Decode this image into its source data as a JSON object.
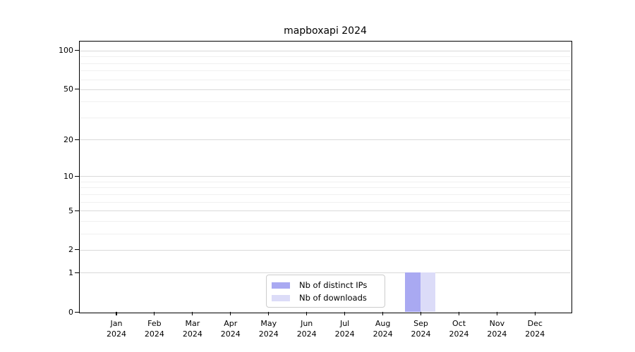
{
  "chart_data": {
    "type": "bar",
    "title": "mapboxapi 2024",
    "categories": [
      {
        "month": "Jan",
        "year": "2024"
      },
      {
        "month": "Feb",
        "year": "2024"
      },
      {
        "month": "Mar",
        "year": "2024"
      },
      {
        "month": "Apr",
        "year": "2024"
      },
      {
        "month": "May",
        "year": "2024"
      },
      {
        "month": "Jun",
        "year": "2024"
      },
      {
        "month": "Jul",
        "year": "2024"
      },
      {
        "month": "Aug",
        "year": "2024"
      },
      {
        "month": "Sep",
        "year": "2024"
      },
      {
        "month": "Oct",
        "year": "2024"
      },
      {
        "month": "Nov",
        "year": "2024"
      },
      {
        "month": "Dec",
        "year": "2024"
      }
    ],
    "series": [
      {
        "name": "Nb of distinct IPs",
        "color": "#a9a9f2",
        "values": [
          0,
          0,
          0,
          0,
          0,
          0,
          0,
          0,
          1,
          0,
          0,
          0
        ]
      },
      {
        "name": "Nb of downloads",
        "color": "#dcdcf8",
        "values": [
          0,
          0,
          0,
          0,
          0,
          0,
          0,
          0,
          1,
          0,
          0,
          0
        ]
      }
    ],
    "y_axis": {
      "scale": "log1p",
      "tick_values": [
        0,
        1,
        2,
        5,
        10,
        20,
        50,
        100
      ],
      "tick_labels": [
        "0",
        "1",
        "2",
        "5",
        "10",
        "20",
        "50",
        "100"
      ],
      "minor_gridline_values": [
        3,
        4,
        6,
        7,
        8,
        9,
        30,
        40,
        60,
        70,
        80,
        90
      ],
      "ylim": [
        0,
        116
      ]
    },
    "legend": {
      "position": "lower center",
      "entries": [
        "Nb of distinct IPs",
        "Nb of downloads"
      ]
    },
    "colors": {
      "grid_major": "#d9d9d9",
      "grid_minor": "#f0f0f0",
      "spine": "#000000",
      "background": "#ffffff"
    }
  }
}
